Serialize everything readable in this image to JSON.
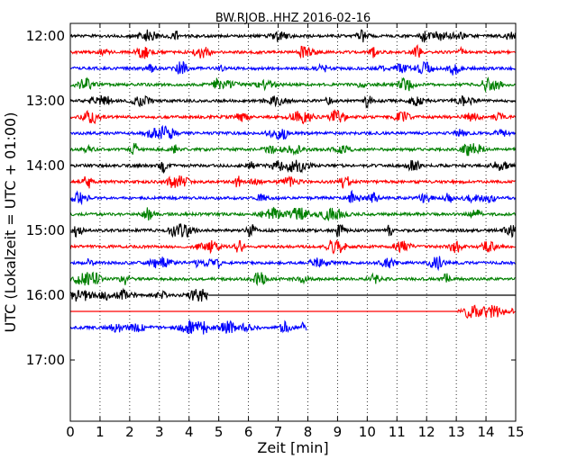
{
  "chart_data": {
    "type": "line",
    "title": "BW.RJOB..HHZ 2016-02-16",
    "xlabel": "Zeit  [min]",
    "ylabel": "UTC (Lokalzeit = UTC + 01:00)",
    "xlim": [
      0,
      15
    ],
    "x_ticks": [
      "0",
      "1",
      "2",
      "3",
      "4",
      "5",
      "6",
      "7",
      "8",
      "9",
      "10",
      "11",
      "12",
      "13",
      "14",
      "15"
    ],
    "y_ticks": [
      "12:00",
      "13:00",
      "14:00",
      "15:00",
      "16:00",
      "17:00"
    ],
    "grid": "vertical dotted",
    "row_interval_minutes": 15,
    "first_row_time": "12:00",
    "line_colors": [
      "#000000",
      "#ff0000",
      "#0000ff",
      "#008000"
    ],
    "series": [
      {
        "row": 0,
        "start": "12:00",
        "segments": [
          [
            0,
            15
          ]
        ],
        "flat": [],
        "amplitude": 3.5
      },
      {
        "row": 1,
        "start": "12:15",
        "segments": [
          [
            0,
            15
          ]
        ],
        "flat": [],
        "amplitude": 3.5
      },
      {
        "row": 2,
        "start": "12:30",
        "segments": [
          [
            0,
            15
          ]
        ],
        "flat": [],
        "amplitude": 3.5
      },
      {
        "row": 3,
        "start": "12:45",
        "segments": [
          [
            0,
            15
          ]
        ],
        "flat": [],
        "amplitude": 3.5
      },
      {
        "row": 4,
        "start": "13:00",
        "segments": [
          [
            0,
            15
          ]
        ],
        "flat": [],
        "amplitude": 3.5
      },
      {
        "row": 5,
        "start": "13:15",
        "segments": [
          [
            0,
            15
          ]
        ],
        "flat": [],
        "amplitude": 3.5
      },
      {
        "row": 6,
        "start": "13:30",
        "segments": [
          [
            0,
            15
          ]
        ],
        "flat": [],
        "amplitude": 3.5
      },
      {
        "row": 7,
        "start": "13:45",
        "segments": [
          [
            0,
            15
          ]
        ],
        "flat": [],
        "amplitude": 3.5
      },
      {
        "row": 8,
        "start": "14:00",
        "segments": [
          [
            0,
            15
          ]
        ],
        "flat": [],
        "amplitude": 3.5
      },
      {
        "row": 9,
        "start": "14:15",
        "segments": [
          [
            0,
            15
          ]
        ],
        "flat": [],
        "amplitude": 3.5
      },
      {
        "row": 10,
        "start": "14:30",
        "segments": [
          [
            0,
            15
          ]
        ],
        "flat": [],
        "amplitude": 3.5
      },
      {
        "row": 11,
        "start": "14:45",
        "segments": [
          [
            0,
            15
          ]
        ],
        "flat": [],
        "amplitude": 3.5
      },
      {
        "row": 12,
        "start": "15:00",
        "segments": [
          [
            0,
            15
          ]
        ],
        "flat": [],
        "amplitude": 3.5
      },
      {
        "row": 13,
        "start": "15:15",
        "segments": [
          [
            0,
            15
          ]
        ],
        "flat": [],
        "amplitude": 3.5
      },
      {
        "row": 14,
        "start": "15:30",
        "segments": [
          [
            0,
            15
          ]
        ],
        "flat": [],
        "amplitude": 3.5
      },
      {
        "row": 15,
        "start": "15:45",
        "segments": [
          [
            0,
            15
          ]
        ],
        "flat": [],
        "amplitude": 3.5
      },
      {
        "row": 16,
        "start": "16:00",
        "segments": [
          [
            0,
            4.65
          ]
        ],
        "flat": [
          [
            4.65,
            15
          ]
        ],
        "amplitude": 3.5
      },
      {
        "row": 17,
        "start": "16:15",
        "segments": [
          [
            13.05,
            15
          ]
        ],
        "flat": [
          [
            0,
            13.05
          ]
        ],
        "amplitude": 3.5
      },
      {
        "row": 18,
        "start": "16:30",
        "segments": [
          [
            0,
            7.95
          ]
        ],
        "flat": [],
        "amplitude": 3.5
      }
    ]
  }
}
